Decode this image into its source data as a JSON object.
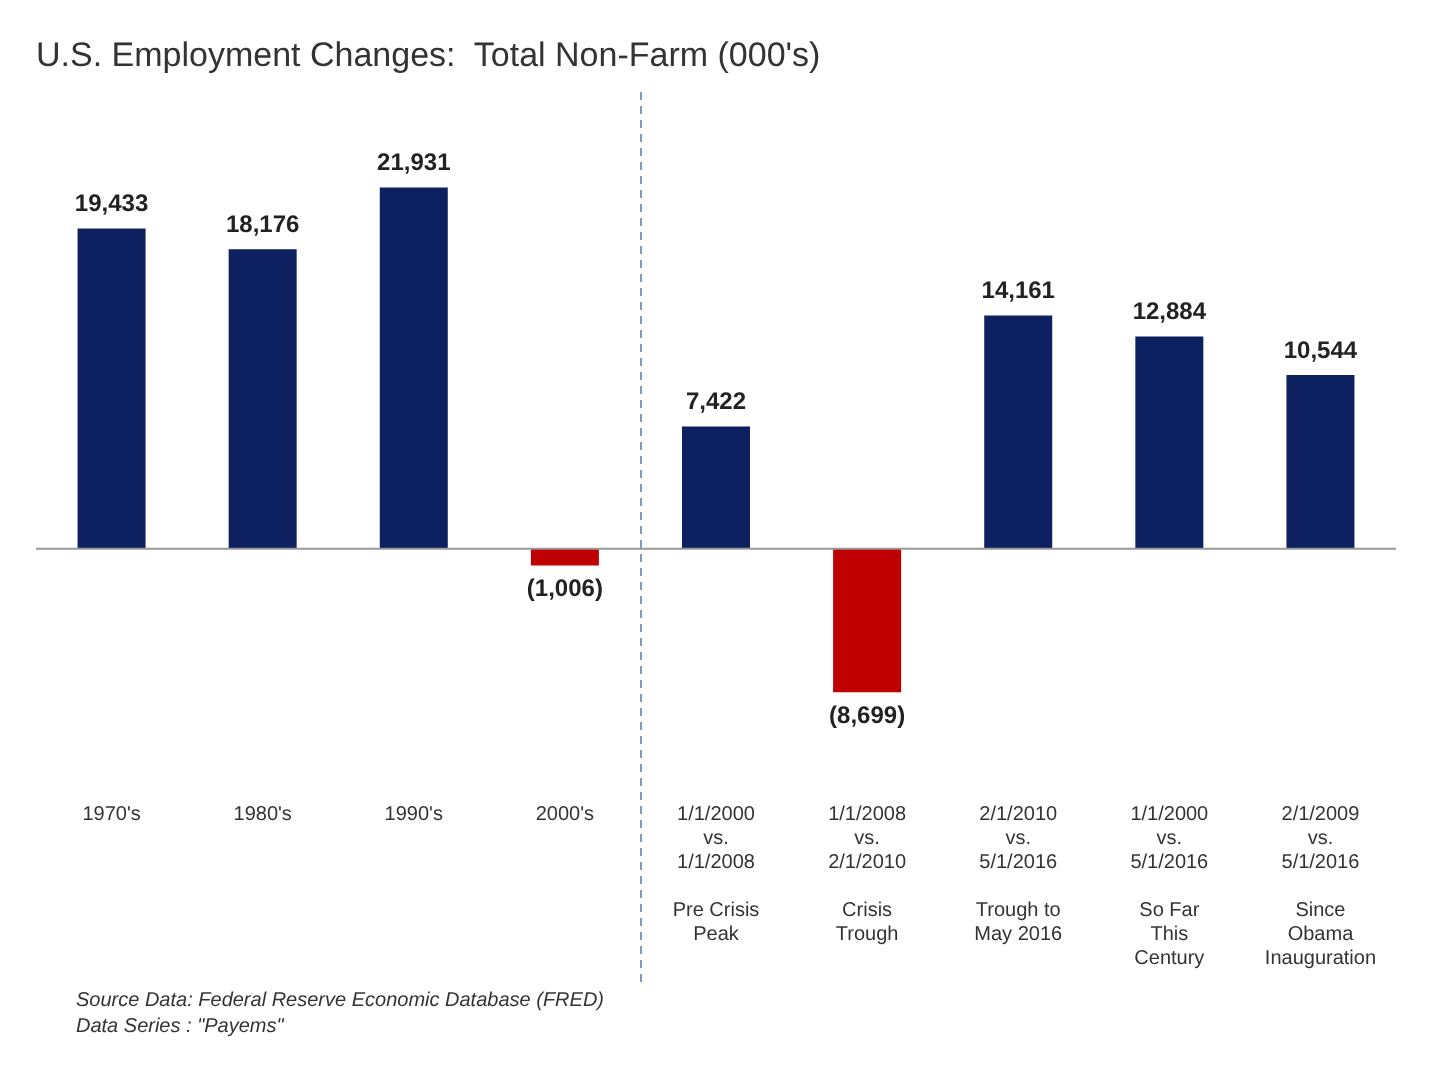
{
  "chart_data": {
    "type": "bar",
    "title": "U.S. Employment Changes:  Total Non-Farm (000's)",
    "categories": [
      "1970's",
      "1980's",
      "1990's",
      "2000's",
      "1/1/2000\nvs.\n1/1/2008\n\nPre Crisis\nPeak",
      "1/1/2008\nvs.\n2/1/2010\n\nCrisis\nTrough",
      "2/1/2010\nvs.\n5/1/2016\n\nTrough to\nMay 2016",
      "1/1/2000\nvs.\n5/1/2016\n\nSo Far\nThis\nCentury",
      "2/1/2009\nvs.\n5/1/2016\n\nSince\nObama\nInauguration"
    ],
    "values": [
      19433,
      18176,
      21931,
      -1006,
      7422,
      -8699,
      14161,
      12884,
      10544
    ],
    "colors": [
      "#0d2160",
      "#0d2160",
      "#0d2160",
      "#c00000",
      "#0d2160",
      "#c00000",
      "#0d2160",
      "#0d2160",
      "#0d2160"
    ],
    "value_labels": [
      "19,433",
      "18,176",
      "21,931",
      "(1,006)",
      "7,422",
      "(8,699)",
      "14,161",
      "12,884",
      "10,544"
    ],
    "tick_labels": "x",
    "grid": false,
    "legend": false,
    "annotations": [
      "Source Data:  Federal Reserve Economic Database (FRED)",
      "Data Series : \"Payems\""
    ]
  }
}
